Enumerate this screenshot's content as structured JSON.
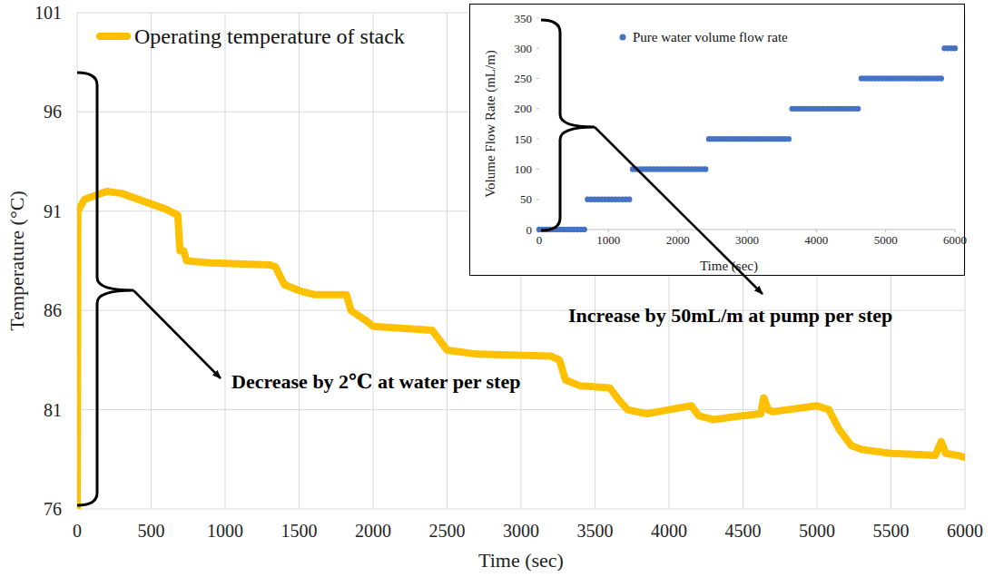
{
  "chart_data": [
    {
      "type": "line",
      "x_label": "Time (sec)",
      "y_label": "Temperature (°C)",
      "annotation": "Decrease by 2℃ at water per step",
      "x": [
        0,
        5,
        50,
        200,
        300,
        450,
        600,
        680,
        695,
        720,
        740,
        900,
        1300,
        1340,
        1400,
        1500,
        1600,
        1820,
        1850,
        1950,
        2000,
        2400,
        2450,
        2500,
        2700,
        3200,
        3260,
        3300,
        3400,
        3600,
        3660,
        3720,
        3850,
        4000,
        4150,
        4200,
        4300,
        4500,
        4620,
        4640,
        4670,
        4700,
        4800,
        5000,
        5080,
        5150,
        5230,
        5300,
        5500,
        5800,
        5840,
        5870,
        5950,
        6000
      ],
      "series": [
        {
          "name": "Operating temperature of stack",
          "color": "#ffc000",
          "values": [
            76,
            91,
            91.6,
            92,
            91.9,
            91.5,
            91.1,
            90.8,
            89,
            89,
            88.5,
            88.4,
            88.3,
            88.2,
            87.3,
            87,
            86.8,
            86.8,
            86,
            85.5,
            85.2,
            85,
            84.5,
            84,
            83.8,
            83.7,
            83.5,
            82.5,
            82.2,
            82.1,
            81.5,
            81,
            80.8,
            81,
            81.2,
            80.7,
            80.5,
            80.7,
            80.8,
            81.6,
            81,
            80.9,
            81,
            81.2,
            81,
            80,
            79.2,
            79,
            78.8,
            78.7,
            79.4,
            78.8,
            78.7,
            78.6
          ]
        }
      ],
      "xlim": [
        0,
        6000
      ],
      "xticks": [
        0,
        500,
        1000,
        1500,
        2000,
        2500,
        3000,
        3500,
        4000,
        4500,
        5000,
        5500,
        6000
      ],
      "ylim": [
        76,
        101
      ],
      "yticks": [
        76,
        81,
        86,
        91,
        96,
        101
      ],
      "grid": true,
      "legend": "top-left"
    },
    {
      "type": "scatter",
      "x_label": "Time (sec)",
      "y_label": "Volume Flow Rate (mL/m)",
      "annotation": "Increase by 50mL/m at pump per step",
      "x": [
        0,
        50,
        100,
        150,
        200,
        250,
        300,
        350,
        400,
        450,
        500,
        550,
        600,
        650,
        700,
        750,
        800,
        850,
        900,
        950,
        1000,
        1050,
        1100,
        1150,
        1200,
        1250,
        1300,
        1350,
        1400,
        1450,
        1500,
        1550,
        1600,
        1650,
        1700,
        1750,
        1800,
        1850,
        1900,
        1950,
        2000,
        2050,
        2100,
        2150,
        2200,
        2250,
        2300,
        2350,
        2400,
        2450,
        2500,
        2550,
        2600,
        2650,
        2700,
        2750,
        2800,
        2850,
        2900,
        2950,
        3000,
        3050,
        3100,
        3150,
        3200,
        3250,
        3300,
        3350,
        3400,
        3450,
        3500,
        3550,
        3600,
        3650,
        3700,
        3750,
        3800,
        3850,
        3900,
        3950,
        4000,
        4050,
        4100,
        4150,
        4200,
        4250,
        4300,
        4350,
        4400,
        4450,
        4500,
        4550,
        4600,
        4650,
        4700,
        4750,
        4800,
        4850,
        4900,
        4950,
        5000,
        5050,
        5100,
        5150,
        5200,
        5250,
        5300,
        5350,
        5400,
        5450,
        5500,
        5550,
        5600,
        5650,
        5700,
        5750,
        5800,
        5850,
        5900,
        5950,
        6000
      ],
      "series": [
        {
          "name": "Pure water volume flow rate",
          "color": "#4472c4",
          "marker": "circle",
          "values": [
            0,
            0,
            0,
            0,
            0,
            0,
            0,
            0,
            0,
            0,
            0,
            0,
            0,
            0,
            50,
            50,
            50,
            50,
            50,
            50,
            50,
            50,
            50,
            50,
            50,
            50,
            50,
            100,
            100,
            100,
            100,
            100,
            100,
            100,
            100,
            100,
            100,
            100,
            100,
            100,
            100,
            100,
            100,
            100,
            100,
            100,
            100,
            100,
            100,
            150,
            150,
            150,
            150,
            150,
            150,
            150,
            150,
            150,
            150,
            150,
            150,
            150,
            150,
            150,
            150,
            150,
            150,
            150,
            150,
            150,
            150,
            150,
            150,
            200,
            200,
            200,
            200,
            200,
            200,
            200,
            200,
            200,
            200,
            200,
            200,
            200,
            200,
            200,
            200,
            200,
            200,
            200,
            200,
            250,
            250,
            250,
            250,
            250,
            250,
            250,
            250,
            250,
            250,
            250,
            250,
            250,
            250,
            250,
            250,
            250,
            250,
            250,
            250,
            250,
            250,
            250,
            250,
            300,
            300,
            300,
            300
          ]
        }
      ],
      "xlim": [
        0,
        6000
      ],
      "xticks": [
        0,
        1000,
        2000,
        3000,
        4000,
        5000,
        6000
      ],
      "ylim": [
        0,
        350
      ],
      "yticks": [
        0,
        50,
        100,
        150,
        200,
        250,
        300,
        350
      ],
      "grid": false,
      "legend": "top"
    }
  ]
}
